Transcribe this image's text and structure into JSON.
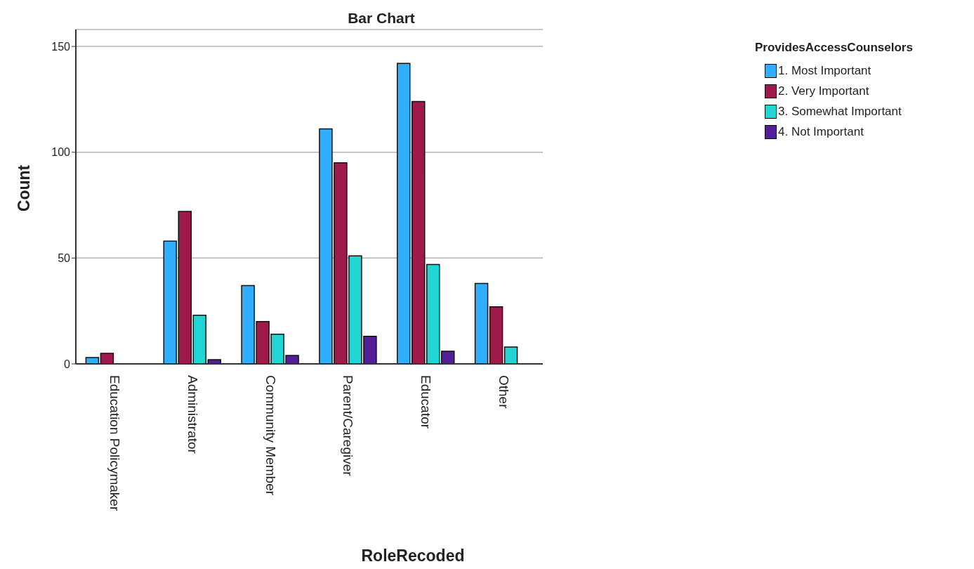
{
  "chart_data": {
    "type": "bar",
    "title": "Bar Chart",
    "xlabel": "RoleRecoded",
    "ylabel": "Count",
    "legend_title": "ProvidesAccessCounselors",
    "categories": [
      "Education Policymaker",
      "Administrator",
      "Community Member",
      "Parent/Caregiver",
      "Educator",
      "Other"
    ],
    "series": [
      {
        "name": "1. Most Important",
        "color": "#31aefe",
        "values": [
          3,
          58,
          37,
          111,
          142,
          38
        ]
      },
      {
        "name": "2. Very Important",
        "color": "#a0194d",
        "values": [
          5,
          72,
          20,
          95,
          124,
          27
        ]
      },
      {
        "name": "3. Somewhat Important",
        "color": "#22d5d2",
        "values": [
          null,
          23,
          14,
          51,
          47,
          8
        ]
      },
      {
        "name": "4. Not Important",
        "color": "#531f99",
        "values": [
          null,
          2,
          4,
          13,
          6,
          null
        ]
      }
    ],
    "ylim": [
      0,
      158
    ],
    "yticks": [
      0,
      50,
      100,
      150
    ],
    "grid": "y",
    "legend": "top right"
  }
}
